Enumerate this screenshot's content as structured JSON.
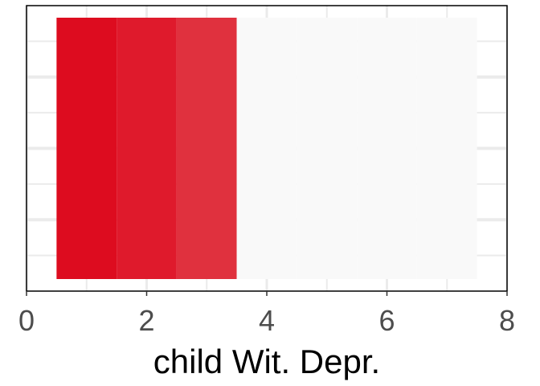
{
  "chart_data": {
    "type": "bar",
    "title": "",
    "xlabel": "child Wit. Depr.",
    "ylabel": "",
    "xlim": [
      0,
      8
    ],
    "x_ticks": [
      0,
      2,
      4,
      6,
      8
    ],
    "tiles": [
      {
        "x": 1,
        "color": "#DD0C1F"
      },
      {
        "x": 2,
        "color": "#DF1A2C"
      },
      {
        "x": 3,
        "color": "#E0313E"
      },
      {
        "x": 4,
        "color": "#F9F9F9"
      },
      {
        "x": 5,
        "color": "#F9F9F9"
      },
      {
        "x": 6,
        "color": "#F9F9F9"
      },
      {
        "x": 7,
        "color": "#F9F9F9"
      }
    ],
    "grid": true,
    "legend": "none",
    "colors": {
      "panel_border": "#000000",
      "grid": "#ebebeb",
      "tick_text": "#4d4d4d"
    }
  }
}
